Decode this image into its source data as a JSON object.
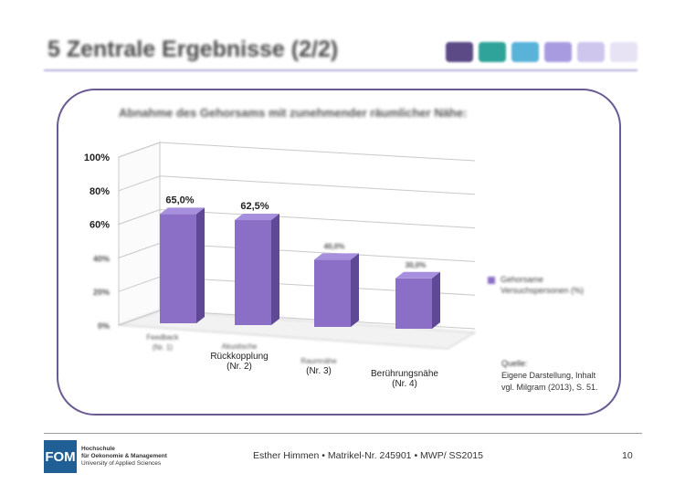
{
  "slide": {
    "title": "5  Zentrale Ergebnisse (2/2)",
    "swatch_colors": [
      "#5b4a86",
      "#2fa39a",
      "#59b2d8",
      "#a99be0",
      "#cfc6ee",
      "#e7e3f4"
    ]
  },
  "chart_data": {
    "type": "bar",
    "title": "Abnahme des Gehorsams mit zunehmender räumlicher Nähe:",
    "categories": [
      "Feedback (Nr. 1)",
      "Akustische Rückkopplung (Nr. 2)",
      "Raumnähe (Nr. 3)",
      "Berührungsnähe (Nr. 4)"
    ],
    "category_lines": [
      [
        "Feedback",
        "(Nr. 1)"
      ],
      [
        "Akustische",
        "Rückkopplung",
        "(Nr. 2)"
      ],
      [
        "Raumnähe",
        "(Nr. 3)"
      ],
      [
        "Berührungsnähe",
        "(Nr. 4)"
      ]
    ],
    "series": [
      {
        "name": "Gehorsame Versuchspersonen (%)",
        "values": [
          65.0,
          62.5,
          40.0,
          30.0
        ],
        "color": "#8b6fc6"
      }
    ],
    "data_labels": [
      "65,0%",
      "62,5%",
      "40,0%",
      "30,0%"
    ],
    "yticks": [
      0,
      20,
      40,
      60,
      80,
      100
    ],
    "ytick_labels": [
      "0%",
      "20%",
      "40%",
      "60%",
      "80%",
      "100%"
    ],
    "ylim": [
      0,
      100
    ],
    "grid": true,
    "legend_position": "right",
    "style": "3d"
  },
  "source": {
    "heading": "Quelle:",
    "lines": [
      "Eigene Darstellung, Inhalt",
      "vgl. Milgram (2013), S. 51."
    ]
  },
  "footer": {
    "logo_mark": "FOM",
    "logo_lines": [
      "Hochschule",
      "für Oekonomie & Management",
      "University of Applied Sciences"
    ],
    "author": "Esther Himmen",
    "matrikel": "Matrikel-Nr.  245901",
    "semester": "MWP/ SS2015",
    "separator": "•",
    "page_number": "10"
  }
}
